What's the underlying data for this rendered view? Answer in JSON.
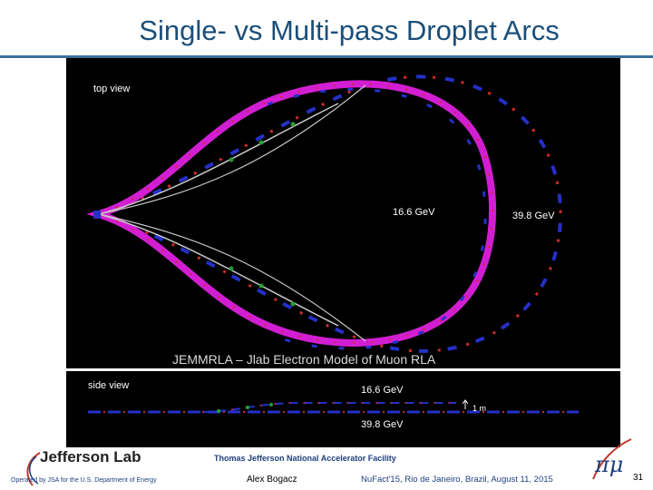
{
  "slide": {
    "title": "Single- vs Multi-pass Droplet Arcs",
    "page_number": "31"
  },
  "top_view": {
    "label": "top view",
    "inner_energy": "16.6 GeV",
    "outer_energy": "39.8 GeV",
    "colors": {
      "inner_arc": "#d21ed2",
      "outer_arc": "#d21ed2",
      "dipoles": "#2430c8",
      "quads": "#cc2b2b",
      "sextupoles": "#22a033",
      "beamline": "#c8c8c8"
    }
  },
  "caption": "JEMMRLA – Jlab Electron Model of Muon RLA",
  "side_view": {
    "label": "side view",
    "upper_energy": "16.6 GeV",
    "lower_energy": "39.8 GeV",
    "scale_label": "1 m"
  },
  "footer": {
    "lab_name": "Jefferson Lab",
    "operated_by": "Operated by JSA for the U.S. Department of Energy",
    "facility": "Thomas Jefferson National Accelerator Facility",
    "presenter": "Alex Bogacz",
    "event": "NuFact'15, Rio de Janeiro, Brazil, August 11, 2015",
    "logo_glyph": "πμ"
  }
}
